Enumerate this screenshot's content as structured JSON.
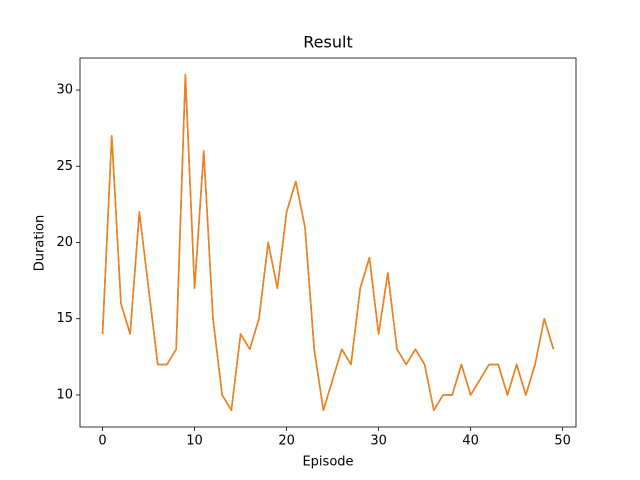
{
  "chart_data": {
    "type": "line",
    "title": "Result",
    "xlabel": "Episode",
    "ylabel": "Duration",
    "x": [
      0,
      1,
      2,
      3,
      4,
      5,
      6,
      7,
      8,
      9,
      10,
      11,
      12,
      13,
      14,
      15,
      16,
      17,
      18,
      19,
      20,
      21,
      22,
      23,
      24,
      25,
      26,
      27,
      28,
      29,
      30,
      31,
      32,
      33,
      34,
      35,
      36,
      37,
      38,
      39,
      40,
      41,
      42,
      43,
      44,
      45,
      46,
      47,
      48,
      49
    ],
    "series": [
      {
        "color": "#1f77b4",
        "values": [
          14,
          27,
          16,
          14,
          22,
          17,
          12,
          12,
          13,
          31,
          17,
          26,
          15,
          10,
          9,
          14,
          13,
          15,
          20,
          17,
          22,
          24,
          21,
          13,
          9,
          11,
          13,
          12,
          17,
          19,
          14,
          18,
          13,
          12,
          13,
          12,
          9,
          10,
          10,
          12,
          10,
          11,
          12,
          12,
          10,
          12,
          10,
          12,
          15,
          13
        ]
      },
      {
        "color": "#ff7f0e",
        "values": [
          14,
          27,
          16,
          14,
          22,
          17,
          12,
          12,
          13,
          31,
          17,
          26,
          15,
          10,
          9,
          14,
          13,
          15,
          20,
          17,
          22,
          24,
          21,
          13,
          9,
          11,
          13,
          12,
          17,
          19,
          14,
          18,
          13,
          12,
          13,
          12,
          9,
          10,
          10,
          12,
          10,
          11,
          12,
          12,
          10,
          12,
          10,
          12,
          15,
          13
        ]
      }
    ],
    "xlim": [
      -2.45,
      51.45
    ],
    "ylim": [
      7.9,
      32.1
    ],
    "xticks": [
      0,
      10,
      20,
      30,
      40,
      50
    ],
    "yticks": [
      10,
      15,
      20,
      25,
      30
    ]
  }
}
